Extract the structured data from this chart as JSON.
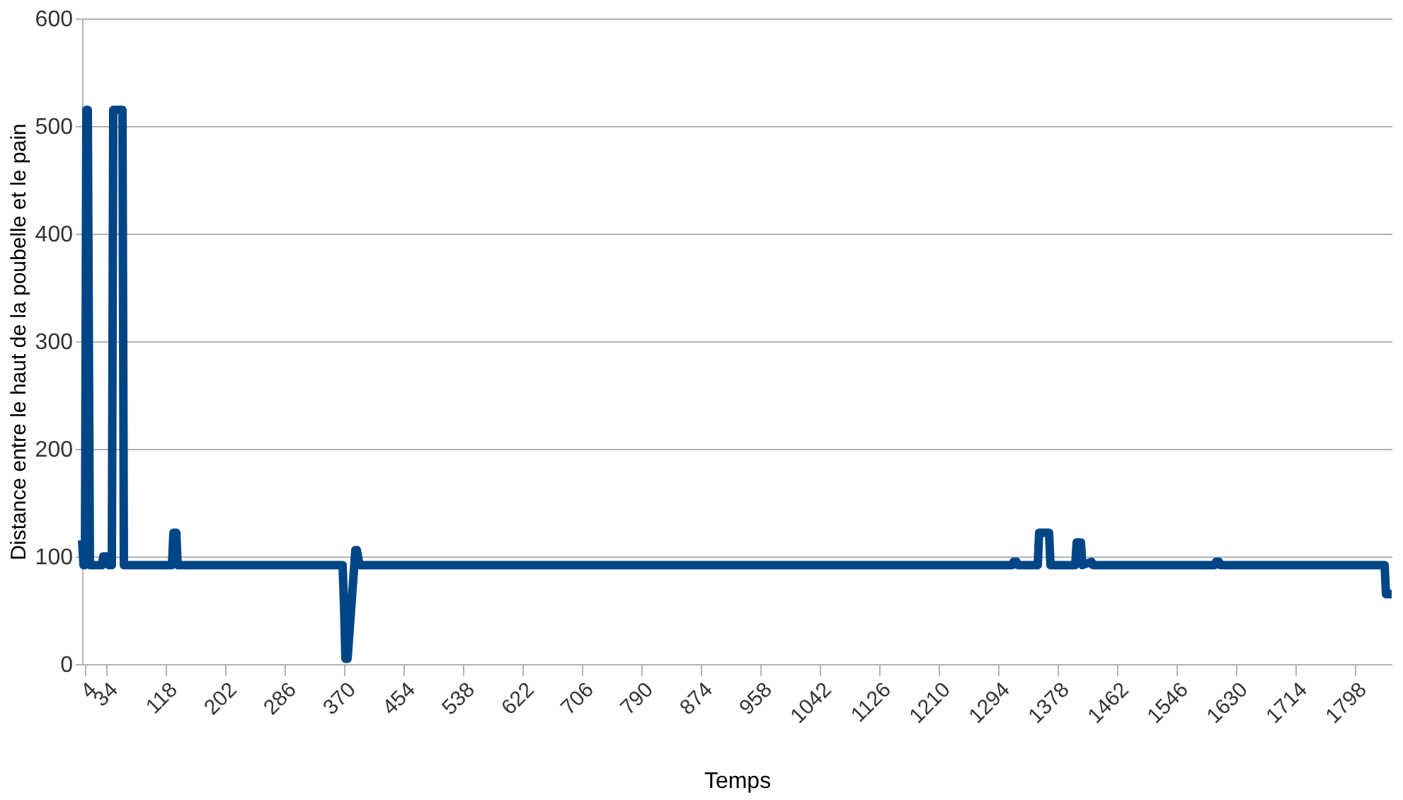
{
  "chart_data": {
    "type": "line",
    "xlabel": "Temps",
    "ylabel": "Distance entre le haut de la poubelle et le pain",
    "x": [
      0,
      2,
      4,
      6,
      8,
      11,
      13,
      16,
      28,
      30,
      36,
      38,
      42,
      44,
      57,
      59,
      127,
      129,
      133,
      135,
      368,
      370,
      372,
      375,
      386,
      388,
      392,
      394,
      1314,
      1316,
      1320,
      1322,
      1350,
      1352,
      1366,
      1368,
      1403,
      1405,
      1411,
      1413,
      1426,
      1428,
      1600,
      1602,
      1606,
      1608,
      1840,
      1842,
      1850
    ],
    "series": [
      {
        "color": "#004586",
        "values": [
          115,
          92,
          92,
          515,
          515,
          92,
          92,
          92,
          92,
          100,
          100,
          92,
          92,
          515,
          515,
          92,
          92,
          122,
          122,
          92,
          92,
          55,
          5,
          5,
          106,
          106,
          92,
          92,
          92,
          95,
          95,
          92,
          92,
          122,
          122,
          92,
          92,
          113,
          113,
          92,
          95,
          92,
          92,
          95,
          95,
          92,
          92,
          65,
          65
        ]
      }
    ],
    "xlim": [
      0,
      1850
    ],
    "xticks": [
      4,
      34,
      118,
      202,
      286,
      370,
      454,
      538,
      622,
      706,
      790,
      874,
      958,
      1042,
      1126,
      1210,
      1294,
      1378,
      1462,
      1546,
      1630,
      1714,
      1798
    ],
    "ylim": [
      0,
      600
    ],
    "yticks": [
      0,
      100,
      200,
      300,
      400,
      500,
      600
    ],
    "grid": "y",
    "legend": false,
    "marker": "none",
    "line_style": "solid"
  }
}
